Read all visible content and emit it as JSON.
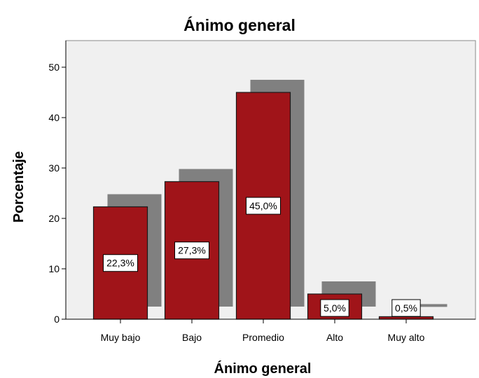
{
  "chart_data": {
    "type": "bar",
    "title": "Ánimo general",
    "xlabel": "Ánimo general",
    "ylabel": "Porcentaje",
    "categories": [
      "Muy bajo",
      "Bajo",
      "Promedio",
      "Alto",
      "Muy alto"
    ],
    "values": [
      22.3,
      27.3,
      45.0,
      5.0,
      0.5
    ],
    "data_labels": [
      "22,3%",
      "27,3%",
      "45,0%",
      "5,0%",
      "0,5%"
    ],
    "yticks": [
      0,
      10,
      20,
      30,
      40,
      50
    ],
    "ylim": [
      0,
      55
    ],
    "grid": false,
    "legend": "none",
    "colors": {
      "bar": "#a01419",
      "bar_border": "#1a1a1a",
      "shadow": "#808080",
      "plot_background": "#f0f0f0",
      "label_background": "#ffffff"
    }
  }
}
